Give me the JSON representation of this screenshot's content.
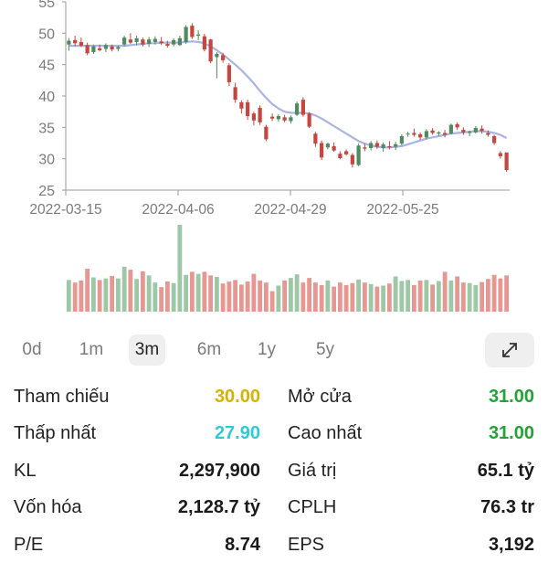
{
  "chart_data": {
    "type": "candlestick",
    "y_ticks": [
      25,
      30,
      35,
      40,
      45,
      50,
      55
    ],
    "ylim": [
      25,
      55
    ],
    "x_tick_labels": [
      "2022-03-15",
      "2022-04-06",
      "2022-04-29",
      "2022-05-25"
    ],
    "ma_line_color": "#a9b3e6",
    "up_color": "#4f8a5e",
    "down_color": "#c4463e",
    "candles": [
      {
        "o": 48.2,
        "h": 49.2,
        "l": 47.2,
        "c": 48.8
      },
      {
        "o": 48.9,
        "h": 49.6,
        "l": 47.9,
        "c": 48.4
      },
      {
        "o": 48.6,
        "h": 49.3,
        "l": 47.8,
        "c": 48.0
      },
      {
        "o": 48.1,
        "h": 48.5,
        "l": 46.5,
        "c": 46.8
      },
      {
        "o": 47.0,
        "h": 48.2,
        "l": 46.7,
        "c": 47.9
      },
      {
        "o": 47.6,
        "h": 48.2,
        "l": 47.1,
        "c": 47.3
      },
      {
        "o": 47.5,
        "h": 48.4,
        "l": 47.0,
        "c": 48.1
      },
      {
        "o": 47.9,
        "h": 48.2,
        "l": 47.1,
        "c": 47.4
      },
      {
        "o": 47.5,
        "h": 48.0,
        "l": 47.1,
        "c": 47.8
      },
      {
        "o": 48.2,
        "h": 49.6,
        "l": 47.9,
        "c": 49.3
      },
      {
        "o": 49.0,
        "h": 50.0,
        "l": 48.3,
        "c": 48.5
      },
      {
        "o": 48.6,
        "h": 49.6,
        "l": 48.1,
        "c": 49.2
      },
      {
        "o": 49.0,
        "h": 49.3,
        "l": 47.9,
        "c": 48.2
      },
      {
        "o": 48.3,
        "h": 49.4,
        "l": 47.8,
        "c": 49.0
      },
      {
        "o": 48.6,
        "h": 49.5,
        "l": 48.2,
        "c": 49.1
      },
      {
        "o": 48.7,
        "h": 49.4,
        "l": 48.1,
        "c": 48.4
      },
      {
        "o": 48.3,
        "h": 48.8,
        "l": 47.7,
        "c": 48.0
      },
      {
        "o": 48.2,
        "h": 49.2,
        "l": 47.9,
        "c": 48.9
      },
      {
        "o": 48.1,
        "h": 49.6,
        "l": 48.0,
        "c": 49.2
      },
      {
        "o": 48.6,
        "h": 51.3,
        "l": 48.3,
        "c": 51.0
      },
      {
        "o": 51.2,
        "h": 51.6,
        "l": 49.1,
        "c": 49.4
      },
      {
        "o": 49.6,
        "h": 50.5,
        "l": 48.9,
        "c": 49.8
      },
      {
        "o": 49.5,
        "h": 49.9,
        "l": 47.1,
        "c": 47.4
      },
      {
        "o": 49.0,
        "h": 49.1,
        "l": 45.2,
        "c": 45.5
      },
      {
        "o": 46.2,
        "h": 47.0,
        "l": 42.8,
        "c": 46.7
      },
      {
        "o": 46.5,
        "h": 46.9,
        "l": 45.3,
        "c": 45.7
      },
      {
        "o": 44.9,
        "h": 45.2,
        "l": 41.6,
        "c": 42.2
      },
      {
        "o": 41.4,
        "h": 42.1,
        "l": 38.9,
        "c": 39.4
      },
      {
        "o": 39.0,
        "h": 39.3,
        "l": 37.2,
        "c": 38.0
      },
      {
        "o": 39.0,
        "h": 39.4,
        "l": 36.2,
        "c": 36.8
      },
      {
        "o": 37.2,
        "h": 37.5,
        "l": 35.3,
        "c": 36.1
      },
      {
        "o": 38.1,
        "h": 38.5,
        "l": 35.4,
        "c": 35.8
      },
      {
        "o": 35.1,
        "h": 35.4,
        "l": 32.8,
        "c": 33.1
      },
      {
        "o": 36.7,
        "h": 37.2,
        "l": 36.0,
        "c": 36.4
      },
      {
        "o": 36.3,
        "h": 37.1,
        "l": 35.9,
        "c": 36.8
      },
      {
        "o": 36.6,
        "h": 37.0,
        "l": 35.8,
        "c": 36.1
      },
      {
        "o": 36.0,
        "h": 36.9,
        "l": 35.6,
        "c": 36.6
      },
      {
        "o": 37.0,
        "h": 39.1,
        "l": 36.8,
        "c": 38.8
      },
      {
        "o": 39.4,
        "h": 39.8,
        "l": 36.7,
        "c": 37.0
      },
      {
        "o": 37.2,
        "h": 37.4,
        "l": 34.9,
        "c": 35.1
      },
      {
        "o": 34.0,
        "h": 34.3,
        "l": 31.9,
        "c": 32.4
      },
      {
        "o": 32.5,
        "h": 32.9,
        "l": 29.8,
        "c": 30.2
      },
      {
        "o": 31.8,
        "h": 32.6,
        "l": 31.5,
        "c": 32.4
      },
      {
        "o": 32.0,
        "h": 32.6,
        "l": 31.1,
        "c": 31.3
      },
      {
        "o": 30.8,
        "h": 31.2,
        "l": 29.9,
        "c": 30.1
      },
      {
        "o": 31.2,
        "h": 31.5,
        "l": 30.5,
        "c": 30.7
      },
      {
        "o": 30.6,
        "h": 30.9,
        "l": 28.6,
        "c": 29.1
      },
      {
        "o": 29.0,
        "h": 32.4,
        "l": 28.8,
        "c": 32.1
      },
      {
        "o": 31.8,
        "h": 32.4,
        "l": 31.2,
        "c": 31.6
      },
      {
        "o": 31.7,
        "h": 32.8,
        "l": 31.3,
        "c": 32.5
      },
      {
        "o": 32.5,
        "h": 32.9,
        "l": 31.6,
        "c": 31.9
      },
      {
        "o": 31.7,
        "h": 32.6,
        "l": 31.1,
        "c": 32.3
      },
      {
        "o": 32.0,
        "h": 32.8,
        "l": 31.5,
        "c": 31.8
      },
      {
        "o": 31.9,
        "h": 32.7,
        "l": 31.4,
        "c": 32.3
      },
      {
        "o": 32.4,
        "h": 33.9,
        "l": 32.1,
        "c": 33.6
      },
      {
        "o": 33.9,
        "h": 34.3,
        "l": 33.5,
        "c": 34.0
      },
      {
        "o": 34.1,
        "h": 34.8,
        "l": 33.5,
        "c": 33.8
      },
      {
        "o": 33.9,
        "h": 34.2,
        "l": 33.0,
        "c": 33.4
      },
      {
        "o": 33.4,
        "h": 34.7,
        "l": 33.1,
        "c": 34.4
      },
      {
        "o": 34.5,
        "h": 34.9,
        "l": 33.8,
        "c": 34.1
      },
      {
        "o": 34.0,
        "h": 34.4,
        "l": 33.6,
        "c": 34.2
      },
      {
        "o": 34.1,
        "h": 34.6,
        "l": 33.4,
        "c": 33.8
      },
      {
        "o": 34.0,
        "h": 35.6,
        "l": 33.9,
        "c": 35.4
      },
      {
        "o": 35.5,
        "h": 35.8,
        "l": 34.6,
        "c": 35.0
      },
      {
        "o": 34.6,
        "h": 35.0,
        "l": 33.8,
        "c": 34.2
      },
      {
        "o": 34.1,
        "h": 34.5,
        "l": 33.6,
        "c": 34.3
      },
      {
        "o": 34.2,
        "h": 35.2,
        "l": 34.0,
        "c": 34.9
      },
      {
        "o": 34.8,
        "h": 35.3,
        "l": 34.0,
        "c": 34.4
      },
      {
        "o": 34.1,
        "h": 34.5,
        "l": 33.5,
        "c": 33.8
      },
      {
        "o": 33.6,
        "h": 33.8,
        "l": 32.2,
        "c": 32.5
      },
      {
        "o": 30.9,
        "h": 31.2,
        "l": 30.0,
        "c": 30.4
      },
      {
        "o": 31.0,
        "h": 31.0,
        "l": 27.9,
        "c": 28.2
      }
    ],
    "ma": [
      48.0,
      48.0,
      48.0,
      48.0,
      48.0,
      48.0,
      48.0,
      48.0,
      48.0,
      48.0,
      48.1,
      48.2,
      48.3,
      48.4,
      48.4,
      48.5,
      48.5,
      48.5,
      48.5,
      48.6,
      48.7,
      48.6,
      48.4,
      47.9,
      47.3,
      46.6,
      45.8,
      45.0,
      44.1,
      43.1,
      42.0,
      40.8,
      39.7,
      38.7,
      38.0,
      37.5,
      37.3,
      37.3,
      37.3,
      37.2,
      36.9,
      36.4,
      35.8,
      35.2,
      34.6,
      34.0,
      33.4,
      32.8,
      32.4,
      32.1,
      31.9,
      31.8,
      31.8,
      31.9,
      32.0,
      32.3,
      32.6,
      32.9,
      33.2,
      33.4,
      33.6,
      33.8,
      34.0,
      34.1,
      34.2,
      34.3,
      34.4,
      34.4,
      34.3,
      34.1,
      33.8,
      33.3
    ],
    "volume": [
      0.62,
      0.57,
      0.61,
      0.84,
      0.67,
      0.62,
      0.65,
      0.7,
      0.65,
      0.88,
      0.82,
      0.64,
      0.79,
      0.71,
      0.57,
      0.48,
      0.59,
      0.56,
      1.7,
      0.72,
      0.78,
      0.74,
      0.78,
      0.71,
      0.68,
      0.55,
      0.59,
      0.62,
      0.53,
      0.59,
      0.74,
      0.61,
      0.57,
      0.4,
      0.51,
      0.61,
      0.66,
      0.73,
      0.57,
      0.66,
      0.57,
      0.52,
      0.61,
      0.49,
      0.57,
      0.52,
      0.56,
      0.63,
      0.57,
      0.54,
      0.49,
      0.51,
      0.55,
      0.69,
      0.6,
      0.62,
      0.52,
      0.61,
      0.62,
      0.53,
      0.6,
      0.78,
      0.61,
      0.69,
      0.57,
      0.56,
      0.52,
      0.58,
      0.64,
      0.72,
      0.65,
      0.71
    ]
  },
  "ranges": [
    {
      "label": "0d",
      "active": false
    },
    {
      "label": "1m",
      "active": false
    },
    {
      "label": "3m",
      "active": true
    },
    {
      "label": "6m",
      "active": false
    },
    {
      "label": "1y",
      "active": false
    },
    {
      "label": "5y",
      "active": false
    }
  ],
  "expand_icon": "expand-arrows-icon",
  "stats": {
    "rows": [
      {
        "left": {
          "label": "Tham chiếu",
          "value": "30.00",
          "color": "#d9b100"
        },
        "right": {
          "label": "Mở cửa",
          "value": "31.00",
          "color": "#23a235"
        }
      },
      {
        "left": {
          "label": "Thấp nhất",
          "value": "27.90",
          "color": "#2ccbd6"
        },
        "right": {
          "label": "Cao nhất",
          "value": "31.00",
          "color": "#23a235"
        }
      },
      {
        "left": {
          "label": "KL",
          "value": "2,297,900",
          "color": "#1a1a1a"
        },
        "right": {
          "label": "Giá trị",
          "value": "65.1 tỷ",
          "color": "#1a1a1a"
        }
      },
      {
        "left": {
          "label": "Vốn hóa",
          "value": "2,128.7 tỷ",
          "color": "#1a1a1a"
        },
        "right": {
          "label": "CPLH",
          "value": "76.3 tr",
          "color": "#1a1a1a"
        }
      },
      {
        "left": {
          "label": "P/E",
          "value": "8.74",
          "color": "#1a1a1a"
        },
        "right": {
          "label": "EPS",
          "value": "3,192",
          "color": "#1a1a1a"
        }
      }
    ]
  }
}
